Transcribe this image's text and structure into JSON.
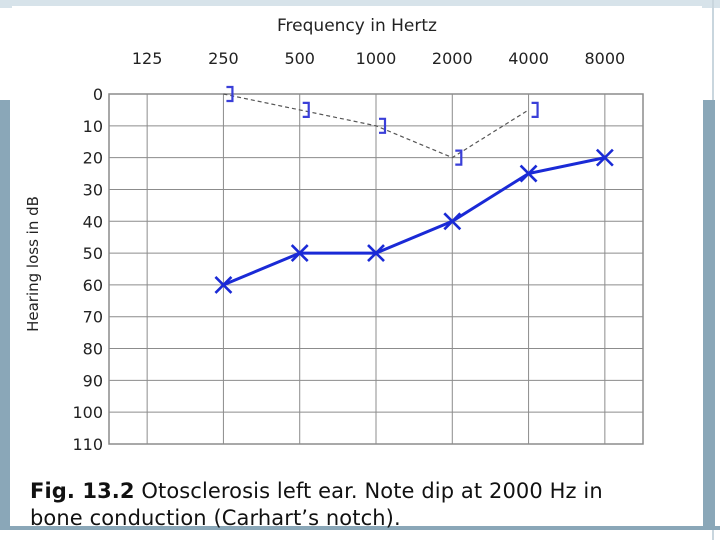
{
  "colors": {
    "grid": "#8c8c8c",
    "axis_text": "#222222",
    "air_series": "#1a2ad6",
    "bone_series": "#3a3fd8",
    "bone_line": "#555555",
    "frame": "#8aa7b8"
  },
  "chart_data": {
    "type": "line",
    "title": "",
    "xlabel": "Frequency in Hertz",
    "ylabel": "Hearing loss in dB",
    "x_axis_position": "top",
    "x_scale": "log2",
    "categories": [
      "125",
      "250",
      "500",
      "1000",
      "2000",
      "4000",
      "8000"
    ],
    "y_ticks": [
      "0",
      "10",
      "20",
      "30",
      "40",
      "50",
      "60",
      "70",
      "80",
      "90",
      "100",
      "110"
    ],
    "ylim": [
      0,
      110
    ],
    "y_inverted": true,
    "grid": true,
    "legend": "none",
    "series": [
      {
        "marker": "X",
        "line": "solid",
        "color": "#1a2ad6",
        "points": [
          {
            "x": 250,
            "y": 60
          },
          {
            "x": 500,
            "y": 50
          },
          {
            "x": 1000,
            "y": 50
          },
          {
            "x": 2000,
            "y": 40
          },
          {
            "x": 4000,
            "y": 25
          },
          {
            "x": 8000,
            "y": 20
          }
        ]
      },
      {
        "marker": "bracket",
        "line": "dashed",
        "color": "#3a3fd8",
        "points": [
          {
            "x": 250,
            "y": 0
          },
          {
            "x": 500,
            "y": 5
          },
          {
            "x": 1000,
            "y": 10
          },
          {
            "x": 2000,
            "y": 20
          },
          {
            "x": 4000,
            "y": 5
          }
        ]
      }
    ]
  },
  "caption": {
    "fig_label": "Fig. 13.2",
    "text_line1": "Otosclerosis left ear. Note dip at 2000 Hz in",
    "text_line2": "bone conduction (Carhart’s notch)."
  }
}
